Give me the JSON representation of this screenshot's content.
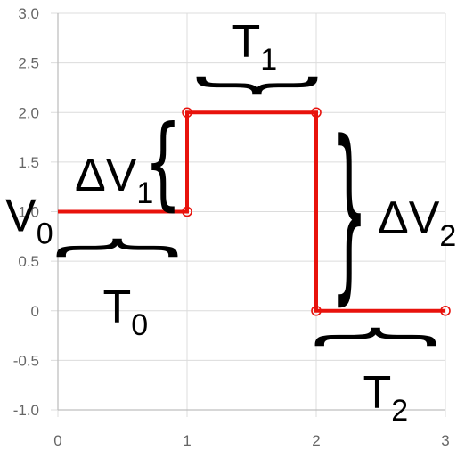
{
  "chart_data": {
    "type": "line",
    "step": true,
    "xlim": [
      0,
      3
    ],
    "ylim": [
      -1,
      3
    ],
    "x_ticks": [
      "0",
      "1",
      "2",
      "3"
    ],
    "y_ticks": [
      "3.0",
      "2.5",
      "2.0",
      "1.5",
      "1.0",
      "0.5",
      "0",
      "-0.5",
      "-1.0"
    ],
    "grid": true,
    "series": [
      {
        "color": "#e8120c",
        "points": [
          {
            "x": 0,
            "y": 1
          },
          {
            "x": 1,
            "y": 1
          },
          {
            "x": 1,
            "y": 2
          },
          {
            "x": 2,
            "y": 2
          },
          {
            "x": 2,
            "y": 0
          },
          {
            "x": 3,
            "y": 0
          }
        ],
        "markers": [
          {
            "x": 1,
            "y": 1
          },
          {
            "x": 1,
            "y": 2
          },
          {
            "x": 2,
            "y": 2
          },
          {
            "x": 2,
            "y": 0
          },
          {
            "x": 3,
            "y": 0
          }
        ]
      }
    ],
    "annotations": [
      {
        "id": "v0",
        "main": "V",
        "sub": "0",
        "at": {
          "x": 0,
          "y": 1
        }
      },
      {
        "id": "t0",
        "main": "T",
        "sub": "0",
        "span": {
          "x1": 0.05,
          "x2": 0.95,
          "y": 0.85
        }
      },
      {
        "id": "dv1",
        "main": "ΔV",
        "sub": "1",
        "span": {
          "x": 0.8,
          "y1": 1.05,
          "y2": 1.95
        }
      },
      {
        "id": "t1",
        "main": "T",
        "sub": "1",
        "span": {
          "x1": 1.05,
          "x2": 1.95,
          "y": 2.2
        }
      },
      {
        "id": "dv2",
        "main": "ΔV",
        "sub": "2",
        "span": {
          "x": 2.15,
          "y1": 0.15,
          "y2": 1.85
        }
      },
      {
        "id": "t2",
        "main": "T",
        "sub": "2",
        "span": {
          "x1": 2.05,
          "x2": 2.95,
          "y": -0.15
        }
      }
    ]
  }
}
